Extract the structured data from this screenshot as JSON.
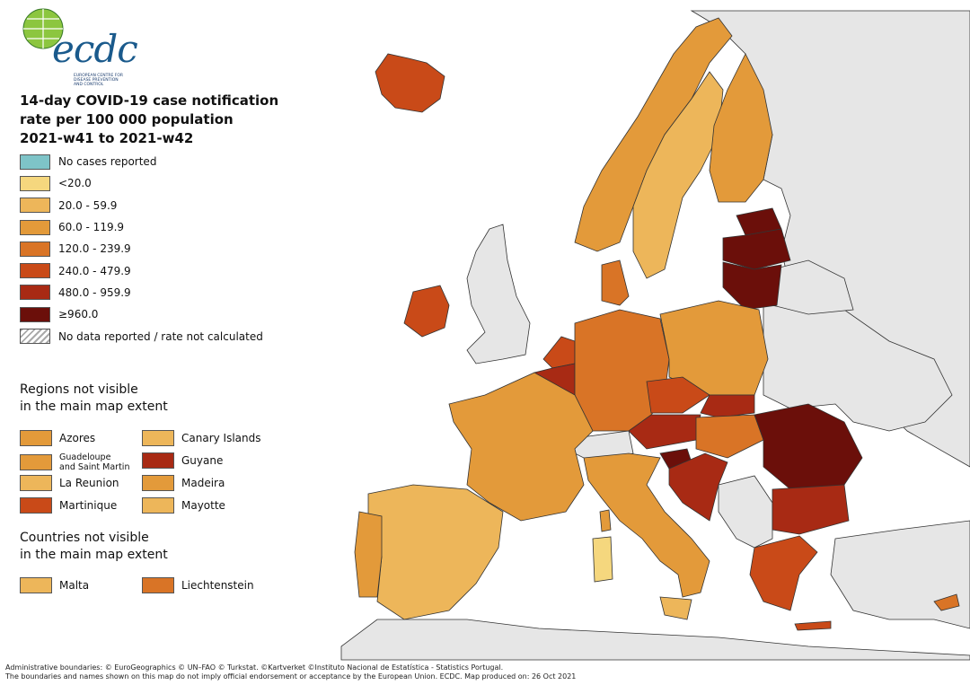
{
  "logo": {
    "text": "ecdc",
    "subtext": "EUROPEAN CENTRE FOR DISEASE PREVENTION AND CONTROL"
  },
  "title": {
    "line1": "14-day COVID-19 case notification",
    "line2": "rate per 100 000 population",
    "line3": "2021-w41 to 2021-w42"
  },
  "legend": [
    {
      "label": "No cases reported",
      "color": "#7ec4c8"
    },
    {
      "label": "<20.0",
      "color": "#f5d77e"
    },
    {
      "label": "20.0 - 59.9",
      "color": "#edb65a"
    },
    {
      "label": "60.0 - 119.9",
      "color": "#e39a3a"
    },
    {
      "label": "120.0 - 239.9",
      "color": "#d97426"
    },
    {
      "label": "240.0 - 479.9",
      "color": "#c94a18"
    },
    {
      "label": "480.0 - 959.9",
      "color": "#a82a14"
    },
    {
      "label": "≥960.0",
      "color": "#6b0f0a"
    },
    {
      "label": "No data reported / rate not calculated",
      "color": "hatch"
    }
  ],
  "regions_section": {
    "line1": "Regions not visible",
    "line2": "in the main map extent",
    "items": [
      {
        "label": "Azores",
        "color": "#e39a3a"
      },
      {
        "label": "Canary Islands",
        "color": "#edb65a"
      },
      {
        "label": "Guadeloupe",
        "label2": "and Saint Martin",
        "color": "#e39a3a"
      },
      {
        "label": "Guyane",
        "color": "#a82a14"
      },
      {
        "label": "La Reunion",
        "color": "#edb65a"
      },
      {
        "label": "Madeira",
        "color": "#e39a3a"
      },
      {
        "label": "Martinique",
        "color": "#c94a18"
      },
      {
        "label": "Mayotte",
        "color": "#edb65a"
      }
    ]
  },
  "countries_section": {
    "line1": "Countries not visible",
    "line2": "in the main map extent",
    "items": [
      {
        "label": "Malta",
        "color": "#edb65a"
      },
      {
        "label": "Liechtenstein",
        "color": "#d97426"
      }
    ]
  },
  "footer": {
    "line1": "Administrative boundaries: © EuroGeographics © UN–FAO © Turkstat. ©Kartverket ©Instituto Nacional de Estatística - Statistics Portugal.",
    "line2": "The boundaries and names shown on this map do not imply official endorsement or acceptance by the European Union. ECDC. Map produced on: 26 Oct 2021"
  },
  "map_colors": {
    "sea": "#ffffff",
    "non_eu": "#e6e6e6",
    "border": "#333333"
  }
}
